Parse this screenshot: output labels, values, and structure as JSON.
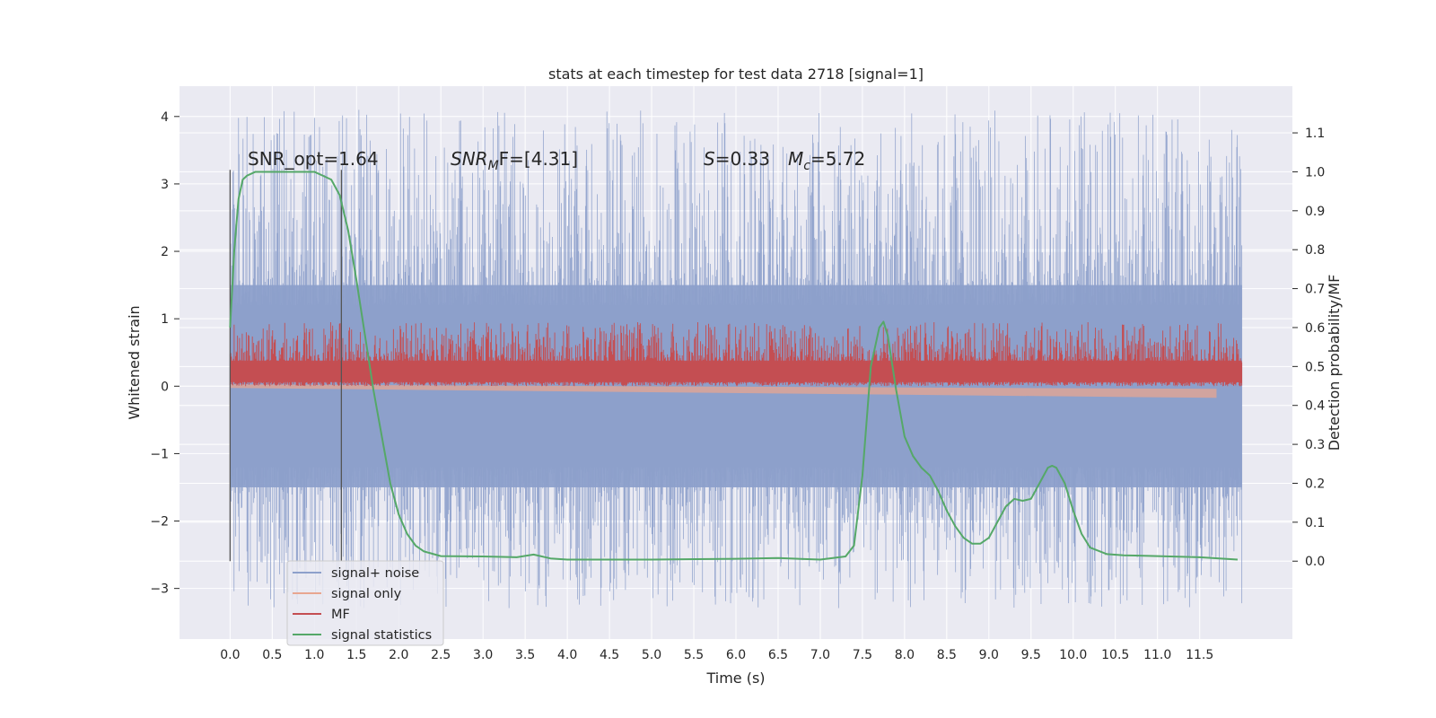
{
  "chart_data": {
    "type": "line",
    "title": "stats at each timestep for test data 2718 [signal=1]",
    "xlabel": "Time (s)",
    "ylabel": "Whitened strain",
    "ylabel_right": "Detection probability/MF",
    "xlim": [
      -0.6,
      12.6
    ],
    "ylim": [
      -3.75,
      4.45
    ],
    "ylim_right": [
      -0.2,
      1.22
    ],
    "x_ticks": [
      "0.0",
      "0.5",
      "1.0",
      "1.5",
      "2.0",
      "2.5",
      "3.0",
      "3.5",
      "4.0",
      "4.5",
      "5.0",
      "5.5",
      "6.0",
      "6.5",
      "7.0",
      "7.5",
      "8.0",
      "8.5",
      "9.0",
      "9.5",
      "10.0",
      "10.5",
      "11.0",
      "11.5"
    ],
    "y_ticks": [
      "4",
      "3",
      "2",
      "1",
      "0",
      "−1",
      "−2",
      "−3"
    ],
    "y_ticks_right": [
      "1.1",
      "1.0",
      "0.9",
      "0.8",
      "0.7",
      "0.6",
      "0.5",
      "0.4",
      "0.3",
      "0.2",
      "0.1",
      "0.0"
    ],
    "grid": true,
    "legend_position": "lower-left",
    "annotations": {
      "snr_opt": "SNR_opt=1.64",
      "snr_mf_base": "SNR",
      "snr_mf_sub": "M",
      "snr_mf_rest": "F=[4.31]",
      "s_base": "S",
      "s_rest": "=0.33",
      "mc_base": "M",
      "mc_sub": "c",
      "mc_rest": "=5.72"
    },
    "vlines": [
      0.0,
      1.32
    ],
    "series": [
      {
        "name": "signal+ noise",
        "color": "#8da0cb",
        "axis": "left",
        "x_range": [
          0.0,
          12.0
        ],
        "band": [
          -1.5,
          1.5
        ],
        "spike_range": [
          -3.3,
          4.1
        ]
      },
      {
        "name": "signal only",
        "color": "#e8a690",
        "axis": "left",
        "x_range": [
          0.0,
          11.7
        ],
        "y_start": 0.0,
        "y_end": -0.12
      },
      {
        "name": "MF",
        "color": "#c44e52",
        "axis": "left",
        "x_range": [
          0.0,
          12.0
        ],
        "band": [
          0.02,
          0.55
        ],
        "spike_range": [
          0.0,
          0.95
        ]
      },
      {
        "name": "signal statistics",
        "color": "#55a868",
        "axis": "right",
        "x": [
          0.0,
          0.05,
          0.1,
          0.15,
          0.2,
          0.3,
          0.5,
          0.8,
          1.0,
          1.1,
          1.2,
          1.3,
          1.4,
          1.5,
          1.6,
          1.7,
          1.8,
          1.9,
          2.0,
          2.1,
          2.2,
          2.3,
          2.5,
          3.0,
          3.4,
          3.6,
          3.8,
          4.0,
          5.0,
          6.0,
          6.5,
          7.0,
          7.3,
          7.4,
          7.5,
          7.6,
          7.7,
          7.75,
          7.8,
          7.9,
          8.0,
          8.1,
          8.2,
          8.3,
          8.4,
          8.5,
          8.6,
          8.7,
          8.8,
          8.9,
          9.0,
          9.1,
          9.2,
          9.3,
          9.4,
          9.5,
          9.6,
          9.7,
          9.75,
          9.8,
          9.9,
          10.0,
          10.1,
          10.2,
          10.4,
          10.6,
          11.0,
          11.5,
          11.95
        ],
        "values": [
          0.6,
          0.8,
          0.93,
          0.98,
          0.99,
          1.0,
          1.0,
          1.0,
          1.0,
          0.99,
          0.98,
          0.94,
          0.85,
          0.72,
          0.58,
          0.44,
          0.32,
          0.2,
          0.12,
          0.07,
          0.04,
          0.025,
          0.013,
          0.012,
          0.01,
          0.017,
          0.007,
          0.004,
          0.004,
          0.006,
          0.008,
          0.004,
          0.012,
          0.04,
          0.22,
          0.5,
          0.6,
          0.615,
          0.58,
          0.44,
          0.32,
          0.27,
          0.24,
          0.22,
          0.18,
          0.13,
          0.09,
          0.06,
          0.045,
          0.045,
          0.06,
          0.1,
          0.14,
          0.16,
          0.155,
          0.16,
          0.2,
          0.24,
          0.245,
          0.24,
          0.2,
          0.13,
          0.07,
          0.035,
          0.018,
          0.015,
          0.013,
          0.01,
          0.004
        ]
      }
    ]
  }
}
